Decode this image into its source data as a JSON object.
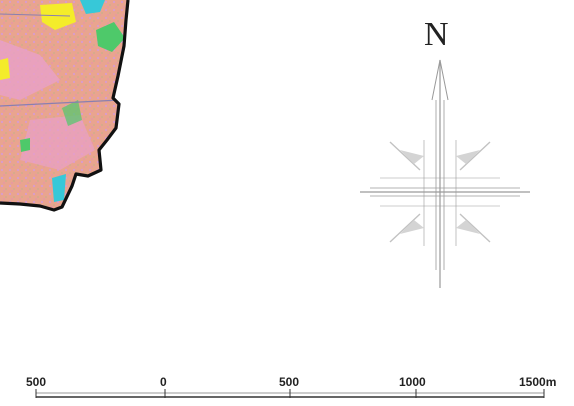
{
  "map": {
    "north_label": "N",
    "scale_bar": {
      "labels": [
        "500",
        "0",
        "500",
        "1000",
        "1500m"
      ]
    },
    "land_cover_colors": {
      "base": "#e9a48f",
      "pink": "#e8a0c8",
      "green": "#4ec96a",
      "cyan": "#37c8d8",
      "yellow": "#f4ec2a"
    },
    "boundary_color": "#111111",
    "compass_color": "#9a9a9a"
  }
}
